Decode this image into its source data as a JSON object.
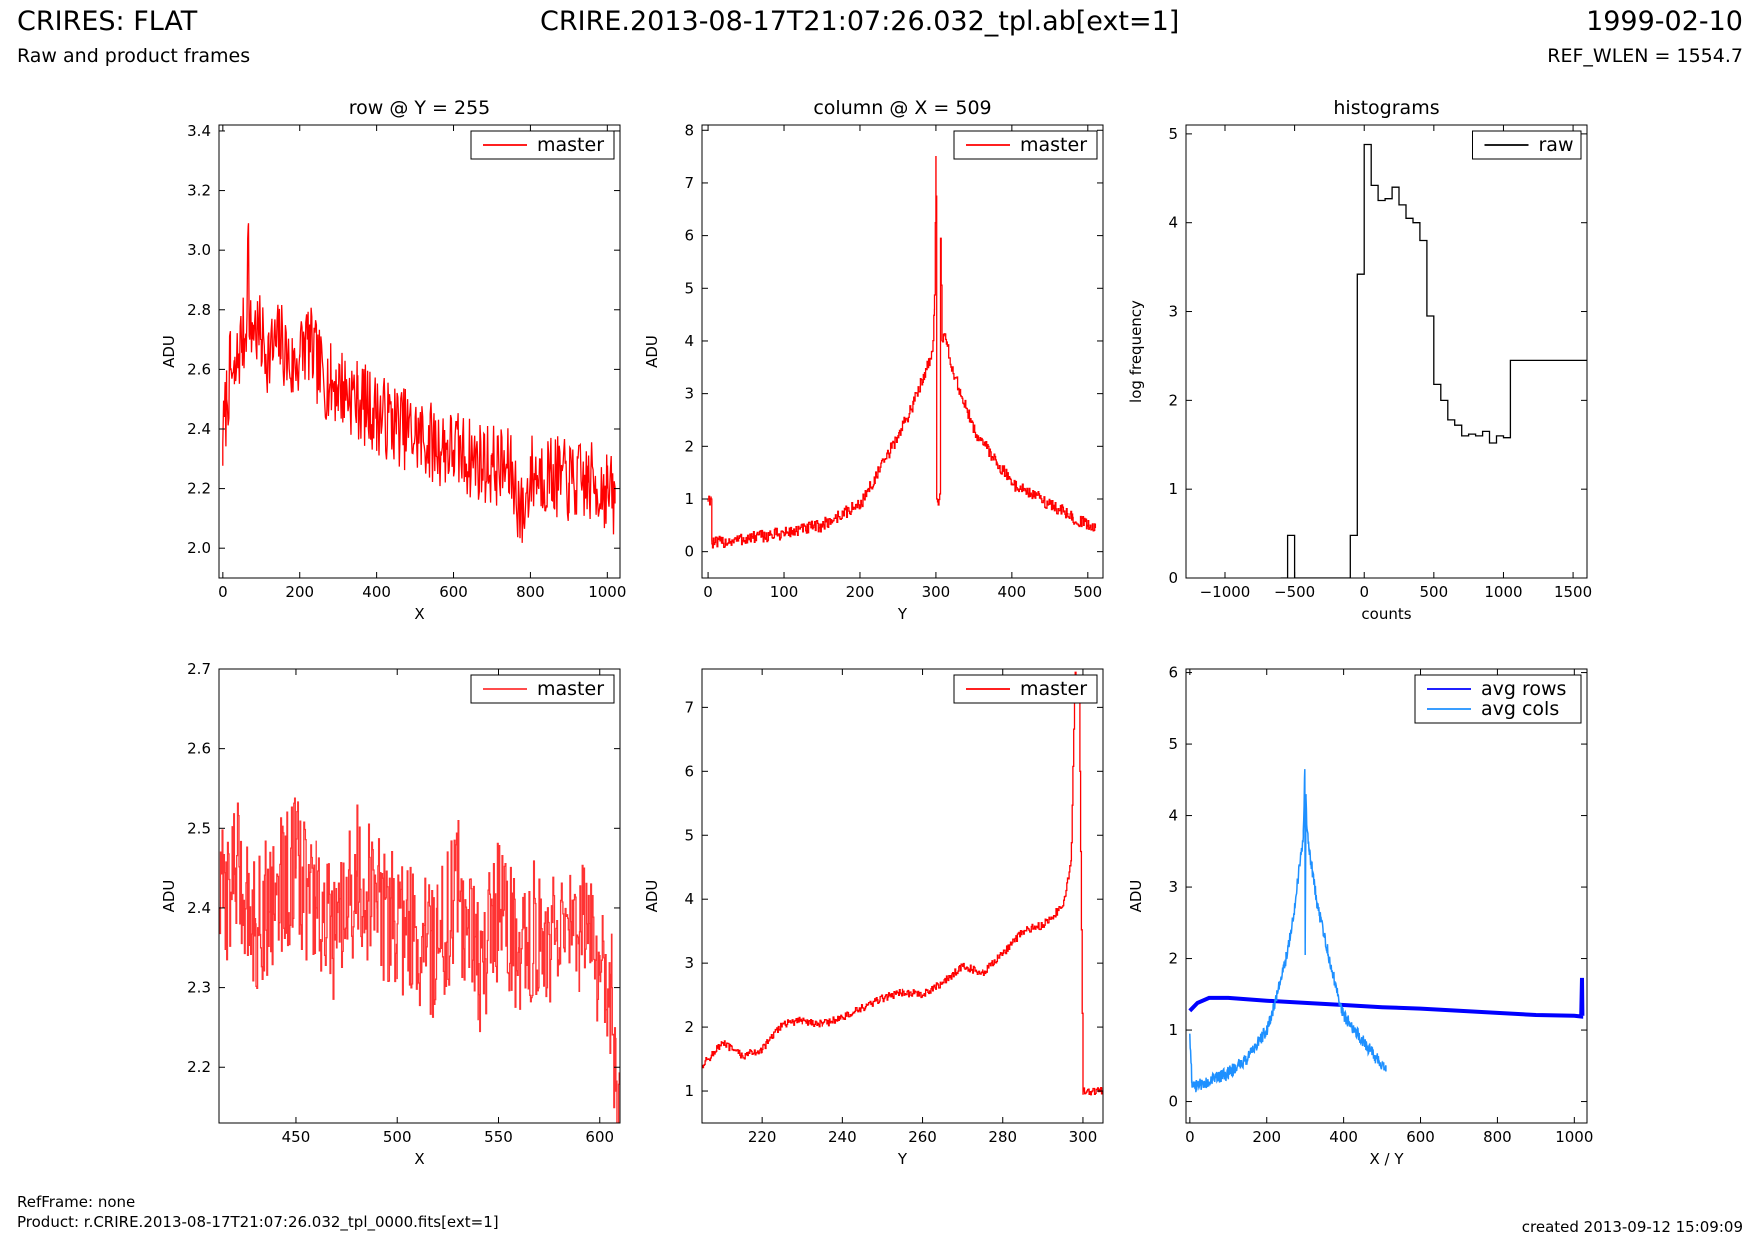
{
  "header": {
    "instrument": "CRIRES: FLAT",
    "subtitle": "Raw and product frames",
    "filename": "CRIRE.2013-08-17T21:07:26.032_tpl.ab[ext=1]",
    "date": "1999-02-10",
    "ref_wlen": "REF_WLEN = 1554.7"
  },
  "footer": {
    "ref_frame": "RefFrame: none",
    "product": "Product: r.CRIRE.2013-08-17T21:07:26.032_tpl_0000.fits[ext=1]",
    "created": "created 2013-09-12 15:09:09"
  },
  "colors": {
    "master": "#ff0000",
    "raw": "#000000",
    "avg_rows": "#0000ff",
    "avg_cols": "#1e90ff"
  },
  "chart_data": [
    {
      "type": "line",
      "title": "row @ Y = 255",
      "xlabel": "X",
      "ylabel": "ADU",
      "xlim": [
        -10,
        1033
      ],
      "ylim": [
        1.9,
        3.42
      ],
      "xticks": [
        0,
        200,
        400,
        600,
        800,
        1000
      ],
      "yticks": [
        2.0,
        2.2,
        2.4,
        2.6,
        2.8,
        3.0,
        3.2,
        3.4
      ],
      "ytick_decimals": 1,
      "legend_position": "top-right",
      "series": [
        {
          "name": "master",
          "color": "#ff0000",
          "style": "line",
          "x": [
            0,
            10,
            20,
            30,
            40,
            50,
            60,
            66,
            70,
            80,
            100,
            120,
            150,
            180,
            200,
            220,
            250,
            280,
            300,
            350,
            400,
            450,
            500,
            550,
            600,
            650,
            700,
            750,
            780,
            800,
            850,
            900,
            950,
            1000,
            1020
          ],
          "y": [
            2.35,
            2.5,
            2.6,
            2.55,
            2.65,
            2.7,
            2.72,
            3.08,
            2.7,
            2.75,
            2.7,
            2.65,
            2.7,
            2.6,
            2.65,
            2.7,
            2.6,
            2.55,
            2.55,
            2.5,
            2.45,
            2.42,
            2.38,
            2.35,
            2.33,
            2.3,
            2.28,
            2.26,
            2.1,
            2.25,
            2.25,
            2.22,
            2.22,
            2.2,
            2.15
          ],
          "noise": 0.14
        }
      ]
    },
    {
      "type": "line",
      "title": "column @ X = 509",
      "xlabel": "Y",
      "ylabel": "ADU",
      "xlim": [
        -8,
        520
      ],
      "ylim": [
        -0.5,
        8.1
      ],
      "xticks": [
        0,
        100,
        200,
        300,
        400,
        500
      ],
      "yticks": [
        0,
        1,
        2,
        3,
        4,
        5,
        6,
        7,
        8
      ],
      "ytick_decimals": 0,
      "legend_position": "top-right",
      "series": [
        {
          "name": "master",
          "color": "#ff0000",
          "style": "step",
          "x": [
            0,
            4,
            5,
            50,
            100,
            150,
            200,
            220,
            250,
            270,
            285,
            295,
            298,
            300,
            301,
            303,
            305,
            306,
            308,
            310,
            315,
            320,
            330,
            350,
            380,
            400,
            450,
            480,
            500,
            510
          ],
          "y": [
            1.0,
            1.0,
            0.15,
            0.25,
            0.35,
            0.5,
            0.9,
            1.4,
            2.2,
            2.8,
            3.4,
            3.8,
            4.6,
            7.5,
            1.0,
            1.0,
            1.0,
            5.95,
            4.0,
            4.1,
            3.9,
            3.5,
            3.1,
            2.3,
            1.7,
            1.3,
            0.9,
            0.65,
            0.5,
            0.45
          ],
          "noise": 0.12
        }
      ]
    },
    {
      "type": "line",
      "title": "histograms",
      "xlabel": "counts",
      "ylabel": "log frequency",
      "xlim": [
        -1280,
        1600
      ],
      "ylim": [
        0,
        5.1
      ],
      "xticks": [
        -1000,
        -500,
        0,
        500,
        1000,
        1500
      ],
      "yticks": [
        0,
        1,
        2,
        3,
        4,
        5
      ],
      "ytick_decimals": 0,
      "legend_position": "top-right",
      "series": [
        {
          "name": "raw",
          "color": "#000000",
          "style": "step",
          "x": [
            -600,
            -550,
            -500,
            -150,
            -100,
            -50,
            0,
            50,
            100,
            150,
            200,
            250,
            300,
            350,
            400,
            450,
            500,
            550,
            600,
            650,
            700,
            750,
            800,
            850,
            900,
            950,
            1000,
            1050,
            1100,
            1150,
            1200,
            1250,
            1300,
            1350,
            1400,
            1450,
            1500,
            1550,
            1600
          ],
          "y": [
            0,
            0.48,
            0,
            0,
            0.48,
            3.42,
            4.88,
            4.42,
            4.25,
            4.27,
            4.4,
            4.2,
            4.05,
            4.0,
            3.8,
            2.95,
            2.18,
            2.0,
            1.78,
            1.72,
            1.6,
            1.62,
            1.6,
            1.65,
            1.52,
            1.6,
            1.58,
            2.45,
            2.45,
            2.45,
            2.45,
            2.45,
            2.45,
            2.45,
            2.45,
            2.45,
            2.45,
            2.45,
            2.45
          ],
          "noise": 0
        }
      ]
    },
    {
      "type": "line",
      "title": "",
      "xlabel": "X",
      "ylabel": "ADU",
      "xlim": [
        412,
        610
      ],
      "ylim": [
        2.13,
        2.7
      ],
      "xticks": [
        450,
        500,
        550,
        600
      ],
      "yticks": [
        2.2,
        2.3,
        2.4,
        2.5,
        2.6,
        2.7
      ],
      "ytick_decimals": 1,
      "legend_position": "top-right",
      "series": [
        {
          "name": "master",
          "color": "#ff3333",
          "style": "step",
          "x": [
            412,
            420,
            430,
            440,
            450,
            460,
            470,
            480,
            490,
            500,
            510,
            520,
            530,
            540,
            550,
            560,
            570,
            580,
            590,
            600,
            606,
            608,
            610
          ],
          "y": [
            2.4,
            2.45,
            2.38,
            2.42,
            2.45,
            2.4,
            2.35,
            2.44,
            2.4,
            2.38,
            2.36,
            2.35,
            2.42,
            2.33,
            2.4,
            2.35,
            2.38,
            2.35,
            2.37,
            2.34,
            2.3,
            2.17,
            2.17
          ],
          "noise": 0.09
        }
      ]
    },
    {
      "type": "line",
      "title": "",
      "xlabel": "Y",
      "ylabel": "ADU",
      "xlim": [
        205,
        305
      ],
      "ylim": [
        0.5,
        7.6
      ],
      "xticks": [
        220,
        240,
        260,
        280,
        300
      ],
      "yticks": [
        1,
        2,
        3,
        4,
        5,
        6,
        7
      ],
      "ytick_decimals": 0,
      "legend_position": "top-right",
      "series": [
        {
          "name": "master",
          "color": "#ff0000",
          "style": "step",
          "x": [
            205,
            210,
            215,
            220,
            225,
            230,
            235,
            240,
            245,
            250,
            255,
            260,
            265,
            270,
            275,
            280,
            285,
            290,
            295,
            297,
            298,
            299,
            300,
            305
          ],
          "y": [
            1.4,
            1.75,
            1.55,
            1.65,
            2.05,
            2.1,
            2.05,
            2.15,
            2.3,
            2.45,
            2.55,
            2.5,
            2.7,
            2.95,
            2.85,
            3.15,
            3.5,
            3.6,
            3.9,
            4.6,
            7.5,
            7.5,
            1.0,
            1.0
          ],
          "noise": 0.06
        }
      ]
    },
    {
      "type": "line",
      "title": "",
      "xlabel": "X / Y",
      "ylabel": "ADU",
      "xlim": [
        -10,
        1033
      ],
      "ylim": [
        -0.3,
        6.05
      ],
      "xticks": [
        0,
        200,
        400,
        600,
        800,
        1000
      ],
      "yticks": [
        0,
        1,
        2,
        3,
        4,
        5,
        6
      ],
      "ytick_decimals": 0,
      "legend_position": "top-right",
      "series": [
        {
          "name": "avg rows",
          "color": "#0000ff",
          "style": "line",
          "width": 4,
          "x": [
            0,
            20,
            50,
            100,
            200,
            300,
            400,
            500,
            600,
            700,
            800,
            900,
            1000,
            1018,
            1020,
            1021
          ],
          "y": [
            1.27,
            1.38,
            1.45,
            1.45,
            1.41,
            1.38,
            1.35,
            1.32,
            1.3,
            1.27,
            1.24,
            1.21,
            1.2,
            1.19,
            1.73,
            1.2
          ],
          "noise": 0
        },
        {
          "name": "avg cols",
          "color": "#1e90ff",
          "style": "line",
          "width": 1.5,
          "x": [
            0,
            5,
            10,
            50,
            100,
            150,
            200,
            220,
            250,
            270,
            285,
            295,
            299,
            300,
            302,
            305,
            310,
            330,
            350,
            380,
            400,
            450,
            500,
            510
          ],
          "y": [
            0.95,
            0.3,
            0.2,
            0.28,
            0.4,
            0.6,
            1.0,
            1.35,
            2.0,
            2.6,
            3.3,
            3.7,
            4.65,
            2.05,
            4.3,
            3.8,
            3.55,
            2.8,
            2.3,
            1.6,
            1.2,
            0.85,
            0.5,
            0.42
          ],
          "noise": 0.09
        }
      ]
    }
  ]
}
